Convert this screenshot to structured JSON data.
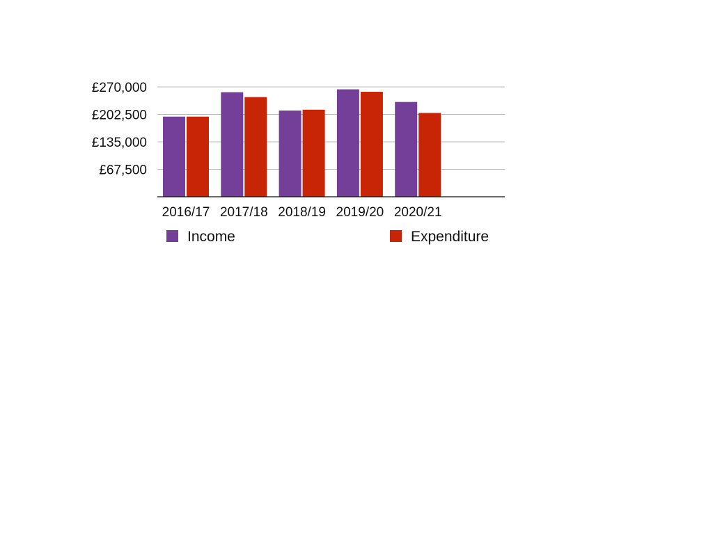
{
  "chart_data": {
    "type": "bar",
    "categories": [
      "2016/17",
      "2017/18",
      "2018/19",
      "2019/20",
      "2020/21"
    ],
    "series": [
      {
        "name": "Income",
        "color": "#733f98",
        "values": [
          197000,
          257000,
          212000,
          264000,
          233000
        ]
      },
      {
        "name": "Expenditure",
        "color": "#c72506",
        "values": [
          197000,
          245000,
          214000,
          258000,
          206000
        ]
      }
    ],
    "ylim": [
      0,
      270000
    ],
    "yticks": [
      67500,
      135000,
      202500,
      270000
    ],
    "ytick_labels": [
      "£67,500",
      "£135,000",
      "£202,500",
      "£270,000"
    ],
    "grid": true,
    "legend_position": "bottom"
  }
}
